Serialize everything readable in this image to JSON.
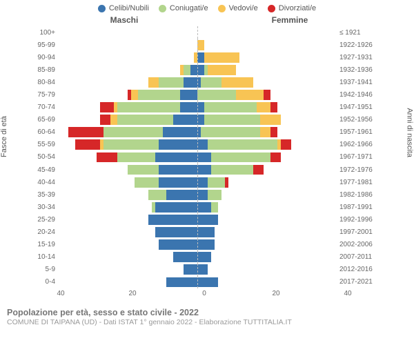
{
  "legend": [
    {
      "label": "Celibi/Nubili",
      "color": "#3b75af"
    },
    {
      "label": "Coniugati/e",
      "color": "#b2d58d"
    },
    {
      "label": "Vedovi/e",
      "color": "#f8c454"
    },
    {
      "label": "Divorziati/e",
      "color": "#d62728"
    }
  ],
  "headers": {
    "male": "Maschi",
    "female": "Femmine"
  },
  "axis_labels": {
    "left": "Fasce di età",
    "right": "Anni di nascita"
  },
  "xmax": 40,
  "xticks": [
    40,
    20,
    0,
    20,
    40
  ],
  "footer": {
    "title": "Popolazione per età, sesso e stato civile - 2022",
    "source": "COMUNE DI TAIPANA (UD) - Dati ISTAT 1° gennaio 2022 - Elaborazione TUTTITALIA.IT"
  },
  "colors": {
    "celibi": "#3b75af",
    "coniugati": "#b2d58d",
    "vedovi": "#f8c454",
    "divorziati": "#d62728"
  },
  "rows": [
    {
      "age": "100+",
      "birth": "≤ 1921",
      "m": [
        0,
        0,
        0,
        0
      ],
      "f": [
        0,
        0,
        0,
        0
      ]
    },
    {
      "age": "95-99",
      "birth": "1922-1926",
      "m": [
        0,
        0,
        0,
        0
      ],
      "f": [
        0,
        0,
        2,
        0
      ]
    },
    {
      "age": "90-94",
      "birth": "1927-1931",
      "m": [
        0,
        0,
        1,
        0
      ],
      "f": [
        2,
        0,
        10,
        0
      ]
    },
    {
      "age": "85-89",
      "birth": "1932-1936",
      "m": [
        2,
        2,
        1,
        0
      ],
      "f": [
        2,
        1,
        8,
        0
      ]
    },
    {
      "age": "80-84",
      "birth": "1937-1941",
      "m": [
        4,
        7,
        3,
        0
      ],
      "f": [
        1,
        6,
        9,
        0
      ]
    },
    {
      "age": "75-79",
      "birth": "1942-1946",
      "m": [
        5,
        12,
        2,
        1
      ],
      "f": [
        0,
        11,
        8,
        2
      ]
    },
    {
      "age": "70-74",
      "birth": "1947-1951",
      "m": [
        5,
        18,
        1,
        4
      ],
      "f": [
        2,
        15,
        4,
        2
      ]
    },
    {
      "age": "65-69",
      "birth": "1952-1956",
      "m": [
        7,
        16,
        2,
        3
      ],
      "f": [
        2,
        16,
        6,
        0
      ]
    },
    {
      "age": "60-64",
      "birth": "1957-1961",
      "m": [
        10,
        17,
        0,
        10
      ],
      "f": [
        1,
        17,
        3,
        2
      ]
    },
    {
      "age": "55-59",
      "birth": "1962-1966",
      "m": [
        11,
        16,
        1,
        7
      ],
      "f": [
        3,
        20,
        1,
        3
      ]
    },
    {
      "age": "50-54",
      "birth": "1967-1971",
      "m": [
        12,
        11,
        0,
        6
      ],
      "f": [
        4,
        17,
        0,
        3
      ]
    },
    {
      "age": "45-49",
      "birth": "1972-1976",
      "m": [
        11,
        9,
        0,
        0
      ],
      "f": [
        4,
        12,
        0,
        3
      ]
    },
    {
      "age": "40-44",
      "birth": "1977-1981",
      "m": [
        11,
        7,
        0,
        0
      ],
      "f": [
        3,
        5,
        0,
        1
      ]
    },
    {
      "age": "35-39",
      "birth": "1982-1986",
      "m": [
        9,
        5,
        0,
        0
      ],
      "f": [
        3,
        4,
        0,
        0
      ]
    },
    {
      "age": "30-34",
      "birth": "1987-1991",
      "m": [
        12,
        1,
        0,
        0
      ],
      "f": [
        4,
        2,
        0,
        0
      ]
    },
    {
      "age": "25-29",
      "birth": "1992-1996",
      "m": [
        14,
        0,
        0,
        0
      ],
      "f": [
        6,
        0,
        0,
        0
      ]
    },
    {
      "age": "20-24",
      "birth": "1997-2001",
      "m": [
        12,
        0,
        0,
        0
      ],
      "f": [
        5,
        0,
        0,
        0
      ]
    },
    {
      "age": "15-19",
      "birth": "2002-2006",
      "m": [
        11,
        0,
        0,
        0
      ],
      "f": [
        5,
        0,
        0,
        0
      ]
    },
    {
      "age": "10-14",
      "birth": "2007-2011",
      "m": [
        7,
        0,
        0,
        0
      ],
      "f": [
        4,
        0,
        0,
        0
      ]
    },
    {
      "age": "5-9",
      "birth": "2012-2016",
      "m": [
        4,
        0,
        0,
        0
      ],
      "f": [
        3,
        0,
        0,
        0
      ]
    },
    {
      "age": "0-4",
      "birth": "2017-2021",
      "m": [
        9,
        0,
        0,
        0
      ],
      "f": [
        6,
        0,
        0,
        0
      ]
    }
  ]
}
